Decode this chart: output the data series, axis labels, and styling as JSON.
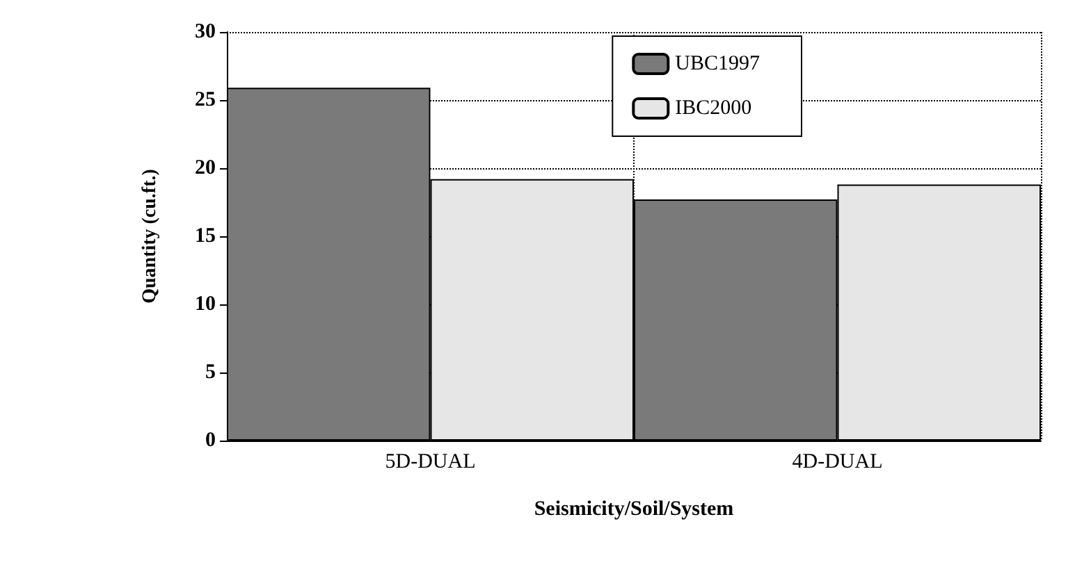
{
  "chart_data": {
    "type": "bar",
    "xlabel": "Seismicity/Soil/System",
    "ylabel": "Quantity (cu.ft.)",
    "categories": [
      "5D-DUAL",
      "4D-DUAL"
    ],
    "series": [
      {
        "name": "UBC1997",
        "color": "#7a7a7a",
        "values": [
          25.9,
          17.7
        ]
      },
      {
        "name": "IBC2000",
        "color": "#e6e6e6",
        "values": [
          19.2,
          18.8
        ]
      }
    ],
    "ylim": [
      0,
      30
    ],
    "yticks": [
      0,
      5,
      10,
      15,
      20,
      25,
      30
    ],
    "grid": true,
    "legend": "top right"
  }
}
